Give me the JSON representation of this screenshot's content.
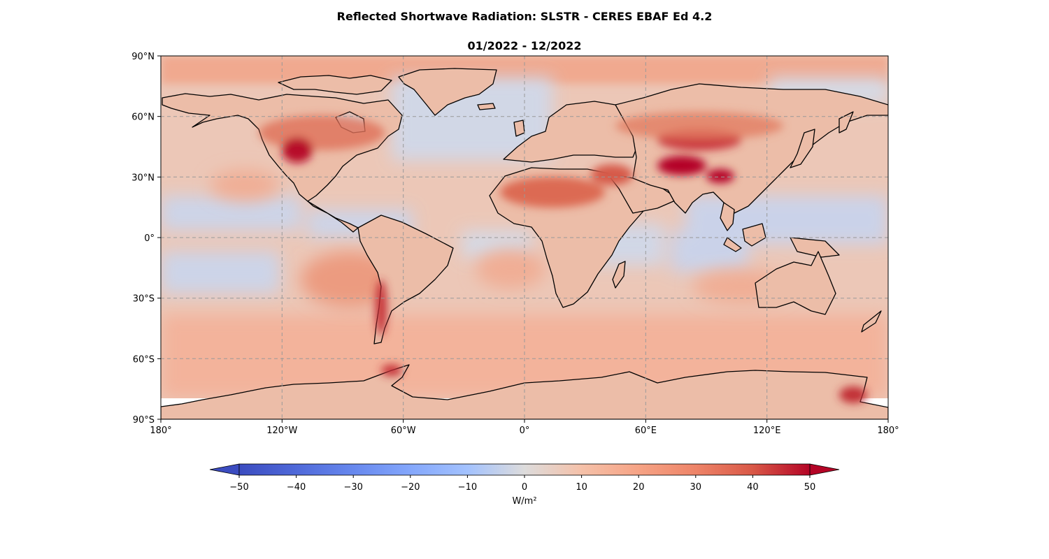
{
  "title": "Reflected Shortwave Radiation: SLSTR - CERES EBAF Ed 4.2",
  "subtitle": "01/2022 - 12/2022",
  "map": {
    "projection": "plate carree",
    "lon_range": [
      -180,
      180
    ],
    "lat_range": [
      -90,
      90
    ],
    "gridlines": true,
    "xticks": [
      {
        "lon": -180,
        "label": "180°"
      },
      {
        "lon": -120,
        "label": "120°W"
      },
      {
        "lon": -60,
        "label": "60°W"
      },
      {
        "lon": 0,
        "label": "0°"
      },
      {
        "lon": 60,
        "label": "60°E"
      },
      {
        "lon": 120,
        "label": "120°E"
      },
      {
        "lon": 180,
        "label": "180°"
      }
    ],
    "yticks": [
      {
        "lat": 90,
        "label": "90°N"
      },
      {
        "lat": 60,
        "label": "60°N"
      },
      {
        "lat": 30,
        "label": "30°N"
      },
      {
        "lat": 0,
        "label": "0°"
      },
      {
        "lat": -30,
        "label": "30°S"
      },
      {
        "lat": -60,
        "label": "60°S"
      },
      {
        "lat": -90,
        "label": "90°S"
      }
    ],
    "field_description_values": {
      "tropical_oceans": -8,
      "mid_latitude_oceans": 15,
      "sahara_arabia": 28,
      "tibet_mongolia": 48,
      "western_us": 40,
      "andes_chile": 35,
      "southern_ocean": 22,
      "arctic": 20
    }
  },
  "colorbar": {
    "colormap": "coolwarm",
    "vmin": -50,
    "vmax": 50,
    "extend": "both",
    "orientation": "horizontal",
    "ticks": [
      {
        "value": -50,
        "label": "−50"
      },
      {
        "value": -40,
        "label": "−40"
      },
      {
        "value": -30,
        "label": "−30"
      },
      {
        "value": -20,
        "label": "−20"
      },
      {
        "value": -10,
        "label": "−10"
      },
      {
        "value": 0,
        "label": "0"
      },
      {
        "value": 10,
        "label": "10"
      },
      {
        "value": 20,
        "label": "20"
      },
      {
        "value": 30,
        "label": "30"
      },
      {
        "value": 40,
        "label": "40"
      },
      {
        "value": 50,
        "label": "50"
      }
    ],
    "label": "W/m²",
    "colors": {
      "min": "#3b4cc0",
      "neutral": "#dddcdc",
      "max": "#b40426"
    }
  }
}
